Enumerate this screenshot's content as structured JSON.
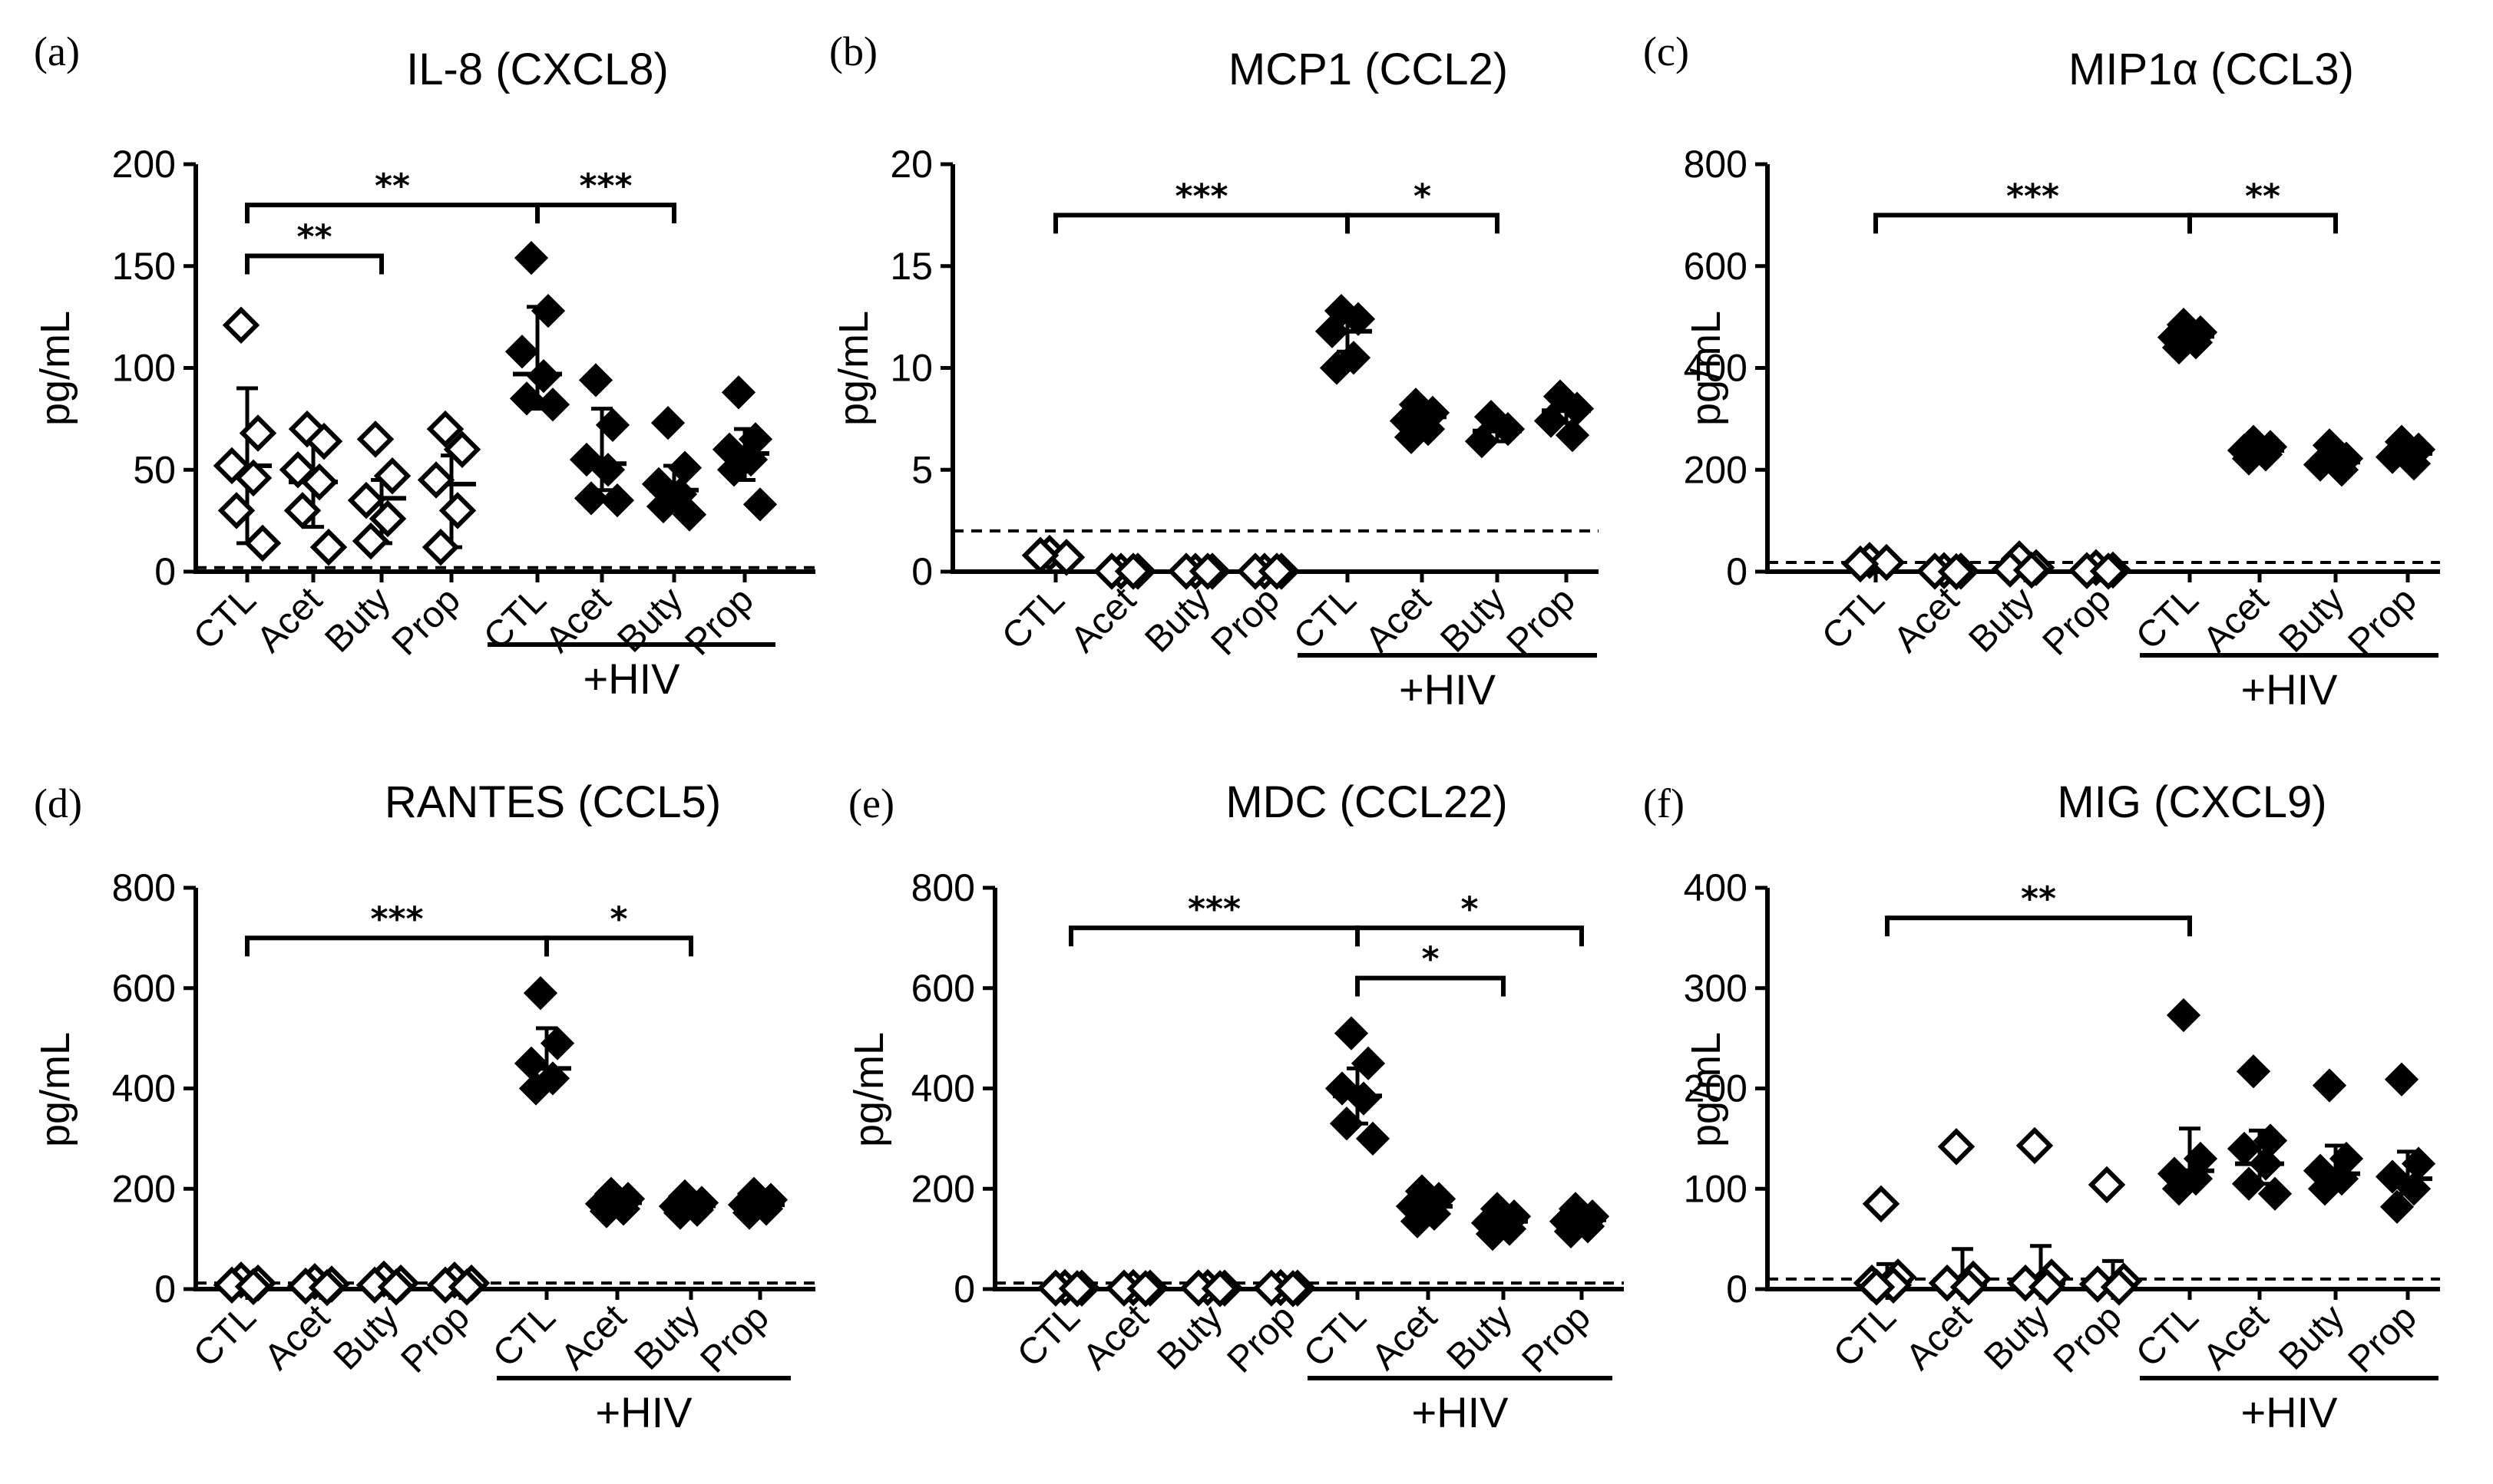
{
  "chart_data": [
    {
      "type": "scatter",
      "panel": "(a)",
      "title": "IL-8 (CXCL8)",
      "ylabel": "pg/mL",
      "ylim": [
        0,
        200
      ],
      "yticks": [
        "0",
        "50",
        "100",
        "150",
        "200"
      ],
      "categories": [
        "CTL",
        "Acet",
        "Buty",
        "Prop",
        "CTL",
        "Acet",
        "Buty",
        "Prop"
      ],
      "group_label": "+HIV",
      "threshold": 2,
      "series": [
        {
          "name": "CTL",
          "filled": false,
          "points": [
            121,
            68,
            52,
            46,
            30,
            14
          ],
          "mean": 52,
          "sd_low": 14,
          "sd_high": 90
        },
        {
          "name": "Acet",
          "filled": false,
          "points": [
            70,
            64,
            50,
            44,
            30,
            12
          ],
          "mean": 44,
          "sd_low": 22,
          "sd_high": 70
        },
        {
          "name": "Buty",
          "filled": false,
          "points": [
            65,
            47,
            35,
            26,
            15
          ],
          "mean": 36,
          "sd_low": 14,
          "sd_high": 45
        },
        {
          "name": "Prop",
          "filled": false,
          "points": [
            70,
            60,
            45,
            30,
            12
          ],
          "mean": 43,
          "sd_low": 12,
          "sd_high": 57
        },
        {
          "name": "CTL",
          "filled": true,
          "points": [
            154,
            128,
            108,
            96,
            85,
            82
          ],
          "mean": 97,
          "sd_low": 80,
          "sd_high": 130
        },
        {
          "name": "Acet",
          "filled": true,
          "points": [
            94,
            72,
            55,
            50,
            36,
            35
          ],
          "mean": 53,
          "sd_low": 40,
          "sd_high": 80
        },
        {
          "name": "Buty",
          "filled": true,
          "points": [
            73,
            51,
            43,
            38,
            32,
            28
          ],
          "mean": 40,
          "sd_low": 30,
          "sd_high": 52
        },
        {
          "name": "Prop",
          "filled": true,
          "points": [
            88,
            65,
            60,
            55,
            50,
            33
          ],
          "mean": 58,
          "sd_low": 45,
          "sd_high": 70
        }
      ],
      "significance": [
        {
          "from": 0,
          "to": 4,
          "label": "**",
          "y": 180
        },
        {
          "from": 0,
          "to": 2,
          "label": "**",
          "y": 155
        },
        {
          "from": 4,
          "to": 6,
          "label": "***",
          "y": 180
        }
      ]
    },
    {
      "type": "scatter",
      "panel": "(b)",
      "title": "MCP1 (CCL2)",
      "ylabel": "pg/mL",
      "ylim": [
        0,
        20
      ],
      "yticks": [
        "0",
        "5",
        "10",
        "15",
        "20"
      ],
      "categories": [
        "CTL",
        "Acet",
        "Buty",
        "Prop",
        "CTL",
        "Acet",
        "Buty",
        "Prop"
      ],
      "group_label": "+HIV",
      "threshold": 2,
      "series": [
        {
          "name": "CTL",
          "filled": false,
          "points": [
            0.9,
            0.7,
            0.8
          ],
          "mean": 0.8,
          "sd_low": 0.7,
          "sd_high": 0.9
        },
        {
          "name": "Acet",
          "filled": false,
          "points": [
            0.02,
            0.02,
            0.02,
            0.02
          ],
          "mean": 0.02,
          "sd_low": 0.02,
          "sd_high": 0.02
        },
        {
          "name": "Buty",
          "filled": false,
          "points": [
            0.02,
            0.02,
            0.02,
            0.02
          ],
          "mean": 0.02,
          "sd_low": 0.02,
          "sd_high": 0.02
        },
        {
          "name": "Prop",
          "filled": false,
          "points": [
            0.02,
            0.02,
            0.02,
            0.02
          ],
          "mean": 0.02,
          "sd_low": 0.02,
          "sd_high": 0.02
        },
        {
          "name": "CTL",
          "filled": true,
          "points": [
            12.8,
            12.4,
            11.8,
            10.5,
            10.0
          ],
          "mean": 11.8,
          "sd_low": 10.8,
          "sd_high": 12.5
        },
        {
          "name": "Acet",
          "filled": true,
          "points": [
            8.2,
            7.8,
            7.4,
            7.0,
            6.6
          ],
          "mean": 7.6,
          "sd_low": 7.0,
          "sd_high": 8.1
        },
        {
          "name": "Buty",
          "filled": true,
          "points": [
            7.6,
            7.0,
            6.4
          ],
          "mean": 6.9,
          "sd_low": 6.4,
          "sd_high": 7.4
        },
        {
          "name": "Prop",
          "filled": true,
          "points": [
            8.6,
            8.0,
            7.4,
            6.7
          ],
          "mean": 7.9,
          "sd_low": 7.3,
          "sd_high": 8.4
        }
      ],
      "significance": [
        {
          "from": 0,
          "to": 4,
          "label": "***",
          "y": 17.5
        },
        {
          "from": 4,
          "to": 6,
          "label": "*",
          "y": 17.5
        }
      ]
    },
    {
      "type": "scatter",
      "panel": "(c)",
      "title": "MIP1α (CCL3)",
      "ylabel": "pg/mL",
      "ylim": [
        0,
        800
      ],
      "yticks": [
        "0",
        "200",
        "400",
        "600",
        "800"
      ],
      "categories": [
        "CTL",
        "Acet",
        "Buty",
        "Prop",
        "CTL",
        "Acet",
        "Buty",
        "Prop"
      ],
      "group_label": "+HIV",
      "threshold": 18,
      "series": [
        {
          "name": "CTL",
          "filled": false,
          "points": [
            22,
            18,
            15
          ],
          "mean": 18,
          "sd_low": 12,
          "sd_high": 22
        },
        {
          "name": "Acet",
          "filled": false,
          "points": [
            2,
            1,
            1,
            0
          ],
          "mean": 1,
          "sd_low": 0,
          "sd_high": 2
        },
        {
          "name": "Buty",
          "filled": false,
          "points": [
            25,
            8,
            5,
            3
          ],
          "mean": 8,
          "sd_low": 3,
          "sd_high": 15
        },
        {
          "name": "Prop",
          "filled": false,
          "points": [
            8,
            3,
            2,
            1
          ],
          "mean": 3,
          "sd_low": 1,
          "sd_high": 6
        },
        {
          "name": "CTL",
          "filled": true,
          "points": [
            485,
            470,
            460,
            450,
            440
          ],
          "mean": 462,
          "sd_low": 448,
          "sd_high": 475
        },
        {
          "name": "Acet",
          "filled": true,
          "points": [
            255,
            245,
            238,
            230,
            222
          ],
          "mean": 238,
          "sd_low": 228,
          "sd_high": 248
        },
        {
          "name": "Buty",
          "filled": true,
          "points": [
            248,
            222,
            210,
            200
          ],
          "mean": 215,
          "sd_low": 205,
          "sd_high": 230
        },
        {
          "name": "Prop",
          "filled": true,
          "points": [
            255,
            240,
            225,
            212
          ],
          "mean": 232,
          "sd_low": 218,
          "sd_high": 246
        }
      ],
      "significance": [
        {
          "from": 0,
          "to": 4,
          "label": "***",
          "y": 700
        },
        {
          "from": 4,
          "to": 6,
          "label": "**",
          "y": 700
        }
      ]
    },
    {
      "type": "scatter",
      "panel": "(d)",
      "title": "RANTES (CCL5)",
      "ylabel": "pg/mL",
      "ylim": [
        0,
        800
      ],
      "yticks": [
        "0",
        "200",
        "400",
        "600",
        "800"
      ],
      "categories": [
        "CTL",
        "Acet",
        "Buty",
        "Prop",
        "CTL",
        "Acet",
        "Buty",
        "Prop"
      ],
      "group_label": "+HIV",
      "threshold": 12,
      "series": [
        {
          "name": "CTL",
          "filled": false,
          "points": [
            18,
            12,
            8,
            5
          ],
          "mean": 10,
          "sd_low": 5,
          "sd_high": 16
        },
        {
          "name": "Acet",
          "filled": false,
          "points": [
            15,
            10,
            6,
            3
          ],
          "mean": 8,
          "sd_low": 3,
          "sd_high": 14
        },
        {
          "name": "Buty",
          "filled": false,
          "points": [
            20,
            12,
            8,
            4
          ],
          "mean": 10,
          "sd_low": 4,
          "sd_high": 16
        },
        {
          "name": "Prop",
          "filled": false,
          "points": [
            18,
            12,
            8,
            4
          ],
          "mean": 10,
          "sd_low": 4,
          "sd_high": 16
        },
        {
          "name": "CTL",
          "filled": true,
          "points": [
            590,
            490,
            450,
            420,
            400
          ],
          "mean": 440,
          "sd_low": 410,
          "sd_high": 520
        },
        {
          "name": "Acet",
          "filled": true,
          "points": [
            190,
            180,
            170,
            160,
            155
          ],
          "mean": 172,
          "sd_low": 160,
          "sd_high": 185
        },
        {
          "name": "Buty",
          "filled": true,
          "points": [
            185,
            172,
            165,
            158,
            152
          ],
          "mean": 166,
          "sd_low": 156,
          "sd_high": 178
        },
        {
          "name": "Prop",
          "filled": true,
          "points": [
            190,
            178,
            168,
            160,
            152
          ],
          "mean": 168,
          "sd_low": 158,
          "sd_high": 180
        }
      ],
      "significance": [
        {
          "from": 0,
          "to": 4,
          "label": "***",
          "y": 700
        },
        {
          "from": 4,
          "to": 6,
          "label": "*",
          "y": 700
        }
      ]
    },
    {
      "type": "scatter",
      "panel": "(e)",
      "title": "MDC (CCL22)",
      "ylabel": "pg/mL",
      "ylim": [
        0,
        800
      ],
      "yticks": [
        "0",
        "200",
        "400",
        "600",
        "800"
      ],
      "categories": [
        "CTL",
        "Acet",
        "Buty",
        "Prop",
        "CTL",
        "Acet",
        "Buty",
        "Prop"
      ],
      "group_label": "+HIV",
      "threshold": 12,
      "series": [
        {
          "name": "CTL",
          "filled": false,
          "points": [
            3,
            2,
            2,
            1
          ],
          "mean": 2,
          "sd_low": 1,
          "sd_high": 3
        },
        {
          "name": "Acet",
          "filled": false,
          "points": [
            3,
            2,
            2,
            1
          ],
          "mean": 2,
          "sd_low": 1,
          "sd_high": 3
        },
        {
          "name": "Buty",
          "filled": false,
          "points": [
            3,
            2,
            2,
            1
          ],
          "mean": 2,
          "sd_low": 1,
          "sd_high": 3
        },
        {
          "name": "Prop",
          "filled": false,
          "points": [
            3,
            2,
            2,
            1
          ],
          "mean": 2,
          "sd_low": 1,
          "sd_high": 3
        },
        {
          "name": "CTL",
          "filled": true,
          "points": [
            510,
            450,
            400,
            380,
            330,
            300
          ],
          "mean": 385,
          "sd_low": 330,
          "sd_high": 440
        },
        {
          "name": "Acet",
          "filled": true,
          "points": [
            195,
            180,
            165,
            150,
            135
          ],
          "mean": 165,
          "sd_low": 148,
          "sd_high": 182
        },
        {
          "name": "Buty",
          "filled": true,
          "points": [
            160,
            145,
            132,
            120,
            110
          ],
          "mean": 135,
          "sd_low": 118,
          "sd_high": 150
        },
        {
          "name": "Prop",
          "filled": true,
          "points": [
            160,
            145,
            135,
            125,
            115
          ],
          "mean": 138,
          "sd_low": 122,
          "sd_high": 152
        }
      ],
      "significance": [
        {
          "from": 0,
          "to": 4,
          "label": "***",
          "y": 720
        },
        {
          "from": 4,
          "to": 7,
          "label": "*",
          "y": 720
        },
        {
          "from": 4,
          "to": 6,
          "label": "*",
          "y": 620
        }
      ]
    },
    {
      "type": "scatter",
      "panel": "(f)",
      "title": "MIG (CXCL9)",
      "ylabel": "pg/mL",
      "ylim": [
        0,
        400
      ],
      "yticks": [
        "0",
        "100",
        "200",
        "300",
        "400"
      ],
      "categories": [
        "CTL",
        "Acet",
        "Buty",
        "Prop",
        "CTL",
        "Acet",
        "Buty",
        "Prop"
      ],
      "group_label": "+HIV",
      "threshold": 10,
      "series": [
        {
          "name": "CTL",
          "filled": false,
          "points": [
            85,
            12,
            6,
            4,
            2
          ],
          "mean": 8,
          "sd_low": 0,
          "sd_high": 25
        },
        {
          "name": "Acet",
          "filled": false,
          "points": [
            142,
            10,
            6,
            2
          ],
          "mean": 5,
          "sd_low": 0,
          "sd_high": 40
        },
        {
          "name": "Buty",
          "filled": false,
          "points": [
            143,
            12,
            6,
            2
          ],
          "mean": 6,
          "sd_low": 0,
          "sd_high": 43
        },
        {
          "name": "Prop",
          "filled": false,
          "points": [
            104,
            8,
            5,
            2
          ],
          "mean": 5,
          "sd_low": 0,
          "sd_high": 28
        },
        {
          "name": "CTL",
          "filled": true,
          "points": [
            273,
            130,
            115,
            110,
            100
          ],
          "mean": 118,
          "sd_low": 100,
          "sd_high": 160
        },
        {
          "name": "Acet",
          "filled": true,
          "points": [
            217,
            148,
            140,
            125,
            105,
            95
          ],
          "mean": 125,
          "sd_low": 105,
          "sd_high": 158
        },
        {
          "name": "Buty",
          "filled": true,
          "points": [
            203,
            130,
            118,
            110,
            100
          ],
          "mean": 115,
          "sd_low": 100,
          "sd_high": 143
        },
        {
          "name": "Prop",
          "filled": true,
          "points": [
            209,
            125,
            112,
            100,
            82
          ],
          "mean": 110,
          "sd_low": 95,
          "sd_high": 137
        }
      ],
      "significance": [
        {
          "from": 0,
          "to": 4,
          "label": "**",
          "y": 370
        }
      ]
    }
  ]
}
